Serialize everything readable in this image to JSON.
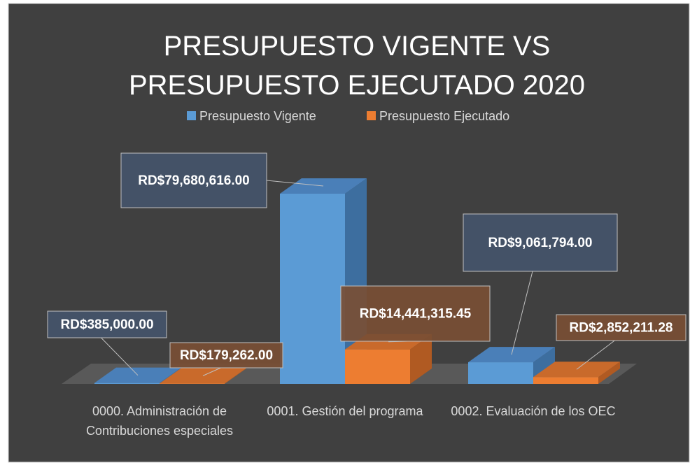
{
  "chart_data": {
    "type": "bar3d",
    "title": "PRESUPUESTO VIGENTE VS PRESUPUESTO EJECUTADO 2020",
    "categories": [
      "0000. Administración de Contribuciones especiales",
      "0001. Gestión del programa",
      "0002. Evaluación de los OEC"
    ],
    "series": [
      {
        "name": "Presupuesto Vigente",
        "color": "#5b9bd5",
        "values": [
          385000,
          79680616,
          9061794
        ],
        "value_labels": [
          "RD$385,000.00",
          "RD$79,680,616.00",
          "RD$9,061,794.00"
        ]
      },
      {
        "name": "Presupuesto Ejecutado",
        "color": "#ed7d31",
        "values": [
          179262,
          14441315.45,
          2852211.28
        ],
        "value_labels": [
          "RD$179,262.00",
          "RD$14,441,315.45",
          "RD$2,852,211.28"
        ]
      }
    ]
  }
}
